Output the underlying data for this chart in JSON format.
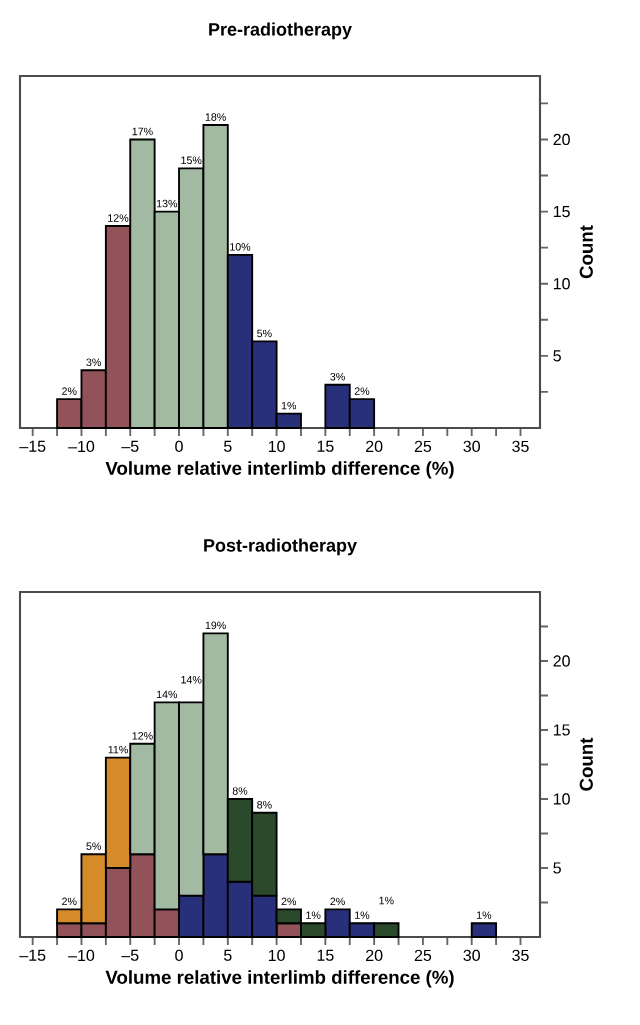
{
  "chart_data": [
    {
      "type": "bar",
      "title": "Pre-radiotherapy",
      "xlabel": "Volume relative interlimb difference (%)",
      "ylabel": "Count",
      "stacked": true,
      "x": [
        -11.25,
        -8.75,
        -6.25,
        -3.75,
        -1.25,
        1.25,
        3.75,
        6.25,
        8.75,
        11.25,
        13.75,
        16.25,
        18.75
      ],
      "series": [
        {
          "color": "#92525a",
          "values": [
            2,
            4,
            14,
            null,
            null,
            null,
            null,
            null,
            null,
            null,
            null,
            null,
            null
          ]
        },
        {
          "color": "#a2b9a2",
          "values": [
            null,
            null,
            null,
            20,
            15,
            18,
            21,
            null,
            null,
            null,
            null,
            null,
            null
          ]
        },
        {
          "color": "#28307a",
          "values": [
            null,
            null,
            null,
            null,
            null,
            null,
            null,
            12,
            6,
            1,
            null,
            3,
            2
          ]
        }
      ],
      "annotations": [
        {
          "text": "2%",
          "x": -11.25,
          "y": 2
        },
        {
          "text": "3%",
          "x": -8.75,
          "y": 4
        },
        {
          "text": "12%",
          "x": -6.25,
          "y": 14
        },
        {
          "text": "17%",
          "x": -3.75,
          "y": 20
        },
        {
          "text": "13%",
          "x": -1.25,
          "y": 15
        },
        {
          "text": "15%",
          "x": 1.25,
          "y": 18
        },
        {
          "text": "18%",
          "x": 3.75,
          "y": 21
        },
        {
          "text": "10%",
          "x": 6.25,
          "y": 12
        },
        {
          "text": "5%",
          "x": 8.75,
          "y": 6
        },
        {
          "text": "1%",
          "x": 11.25,
          "y": 1
        },
        {
          "text": "3%",
          "x": 16.25,
          "y": 3
        },
        {
          "text": "2%",
          "x": 18.75,
          "y": 2
        }
      ],
      "xlim": [
        -16.3,
        37
      ],
      "ylim": [
        0,
        24.4
      ],
      "xticks": [
        {
          "value": -15,
          "label": "–15"
        },
        {
          "value": -12.5,
          "label": null
        },
        {
          "value": -10,
          "label": "–10"
        },
        {
          "value": -7.5,
          "label": null
        },
        {
          "value": -5,
          "label": "–5"
        },
        {
          "value": -2.5,
          "label": null
        },
        0,
        {
          "value": 2.5,
          "label": null
        },
        5,
        {
          "value": 7.5,
          "label": null
        },
        10,
        {
          "value": 12.5,
          "label": null
        },
        15,
        {
          "value": 17.5,
          "label": null
        },
        20,
        {
          "value": 22.5,
          "label": null
        },
        25,
        {
          "value": 27.5,
          "label": null
        },
        30,
        {
          "value": 32.5,
          "label": null
        },
        35
      ],
      "yticks": [
        {
          "value": 2.5,
          "label": null
        },
        5,
        {
          "value": 7.5,
          "label": null
        },
        10,
        {
          "value": 12.5,
          "label": null
        },
        15,
        {
          "value": 17.5,
          "label": null
        },
        20,
        {
          "value": 22.5,
          "label": null
        }
      ]
    },
    {
      "type": "bar",
      "title": "Post-radiotherapy",
      "xlabel": "Volume relative interlimb difference (%)",
      "ylabel": "Count",
      "stacked": true,
      "x": [
        -11.25,
        -8.75,
        -6.25,
        -3.75,
        -1.25,
        1.25,
        3.75,
        6.25,
        8.75,
        11.25,
        13.75,
        16.25,
        18.75,
        21.25,
        23.75,
        26.25,
        28.75,
        31.25
      ],
      "series": [
        {
          "color": "#92525a",
          "values": [
            1,
            1,
            5,
            6,
            2,
            null,
            null,
            null,
            null,
            1,
            null,
            null,
            null,
            null,
            null,
            null,
            null,
            null
          ]
        },
        {
          "color": "#28307a",
          "values": [
            null,
            null,
            null,
            null,
            null,
            3,
            6,
            4,
            3,
            null,
            null,
            2,
            1,
            null,
            null,
            null,
            null,
            1
          ]
        },
        {
          "color": "#d58b2a",
          "values": [
            1,
            5,
            8,
            null,
            null,
            null,
            null,
            null,
            null,
            null,
            null,
            null,
            null,
            null,
            null,
            null,
            null,
            null
          ]
        },
        {
          "color": "#a2b9a2",
          "values": [
            null,
            null,
            null,
            8,
            15,
            14,
            16,
            null,
            null,
            null,
            null,
            null,
            null,
            null,
            null,
            null,
            null,
            null
          ]
        },
        {
          "color": "#2b4a2c",
          "values": [
            null,
            null,
            null,
            null,
            null,
            null,
            null,
            6,
            6,
            1,
            1,
            null,
            null,
            1,
            null,
            null,
            null,
            null
          ]
        }
      ],
      "annotations": [
        {
          "text": "2%",
          "x": -11.25,
          "y": 2
        },
        {
          "text": "5%",
          "x": -8.75,
          "y": 6
        },
        {
          "text": "11%",
          "x": -6.25,
          "y": 13
        },
        {
          "text": "12%",
          "x": -3.75,
          "y": 14
        },
        {
          "text": "14%",
          "x": -1.25,
          "y": 17
        },
        {
          "text": "14%",
          "x": 1.25,
          "y": 17
        },
        {
          "text": "19%",
          "x": 3.75,
          "y": 22
        },
        {
          "text": "8%",
          "x": 6.25,
          "y": 10
        },
        {
          "text": "8%",
          "x": 8.75,
          "y": 9
        },
        {
          "text": "2%",
          "x": 11.25,
          "y": 2
        },
        {
          "text": "1%",
          "x": 13.75,
          "y": 1
        },
        {
          "text": "2%",
          "x": 16.25,
          "y": 2
        },
        {
          "text": "1%",
          "x": 18.75,
          "y": 1
        },
        {
          "text": "1%",
          "x": 21.25,
          "y": 1
        },
        {
          "text": "1%",
          "x": 31.25,
          "y": 1
        }
      ],
      "xlim": [
        -16.3,
        37
      ],
      "ylim": [
        0,
        25
      ],
      "xticks": [
        {
          "value": -15,
          "label": "–15"
        },
        {
          "value": -12.5,
          "label": null
        },
        {
          "value": -10,
          "label": "–10"
        },
        {
          "value": -7.5,
          "label": null
        },
        {
          "value": -5,
          "label": "–5"
        },
        {
          "value": -2.5,
          "label": null
        },
        0,
        {
          "value": 2.5,
          "label": null
        },
        5,
        {
          "value": 7.5,
          "label": null
        },
        10,
        {
          "value": 12.5,
          "label": null
        },
        15,
        {
          "value": 17.5,
          "label": null
        },
        20,
        {
          "value": 22.5,
          "label": null
        },
        25,
        {
          "value": 27.5,
          "label": null
        },
        30,
        {
          "value": 32.5,
          "label": null
        },
        35
      ],
      "yticks": [
        {
          "value": 2.5,
          "label": null
        },
        5,
        {
          "value": 7.5,
          "label": null
        },
        10,
        {
          "value": 12.5,
          "label": null
        },
        15,
        {
          "value": 17.5,
          "label": null
        },
        20,
        {
          "value": 22.5,
          "label": null
        }
      ]
    }
  ]
}
